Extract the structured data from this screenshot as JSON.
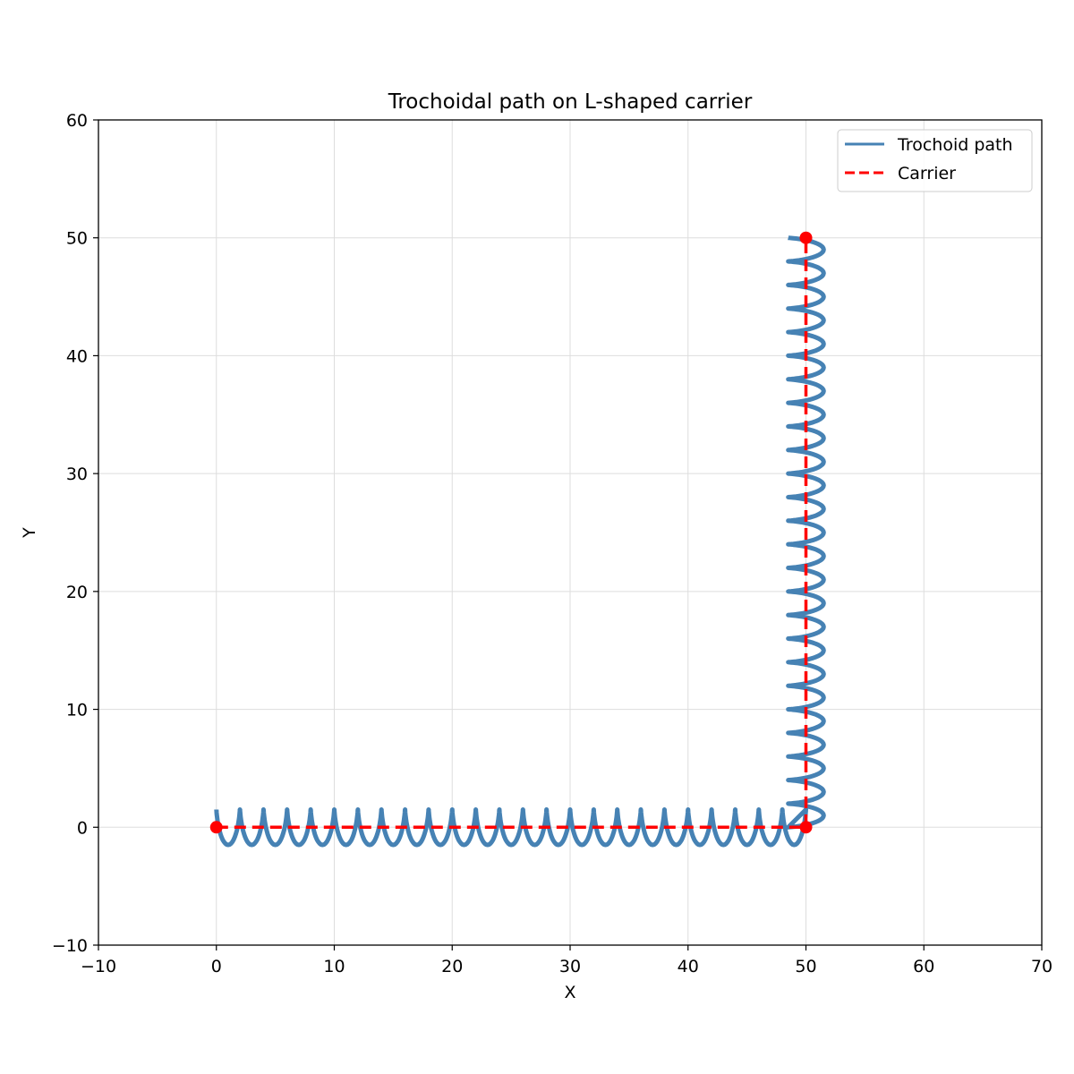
{
  "chart_data": {
    "type": "line",
    "title": "Trochoidal path on L-shaped carrier",
    "xlabel": "X",
    "ylabel": "Y",
    "xlim": [
      -10,
      70
    ],
    "ylim": [
      -10,
      60
    ],
    "xticks": [
      -10,
      0,
      10,
      20,
      30,
      40,
      50,
      60,
      70
    ],
    "yticks": [
      -10,
      0,
      10,
      20,
      30,
      40,
      50,
      60
    ],
    "xtick_labels": [
      "−10",
      "0",
      "10",
      "20",
      "30",
      "40",
      "50",
      "60",
      "70"
    ],
    "ytick_labels": [
      "−10",
      "0",
      "10",
      "20",
      "30",
      "40",
      "50",
      "60"
    ],
    "grid": true,
    "legend_position": "top-right",
    "series": [
      {
        "name": "Trochoid path",
        "kind": "trochoid",
        "color": "#4682b4",
        "amplitude": 1.5,
        "period": 2,
        "segments": [
          {
            "from": [
              0,
              0
            ],
            "to": [
              50,
              0
            ]
          },
          {
            "from": [
              50,
              0
            ],
            "to": [
              50,
              50
            ]
          }
        ]
      },
      {
        "name": "Carrier",
        "kind": "polyline",
        "color": "#ff0000",
        "dashed": true,
        "points": [
          [
            0,
            0
          ],
          [
            50,
            0
          ],
          [
            50,
            50
          ]
        ]
      }
    ],
    "markers": {
      "color": "#ff0000",
      "points": [
        [
          0,
          0
        ],
        [
          50,
          0
        ],
        [
          50,
          50
        ]
      ]
    }
  }
}
